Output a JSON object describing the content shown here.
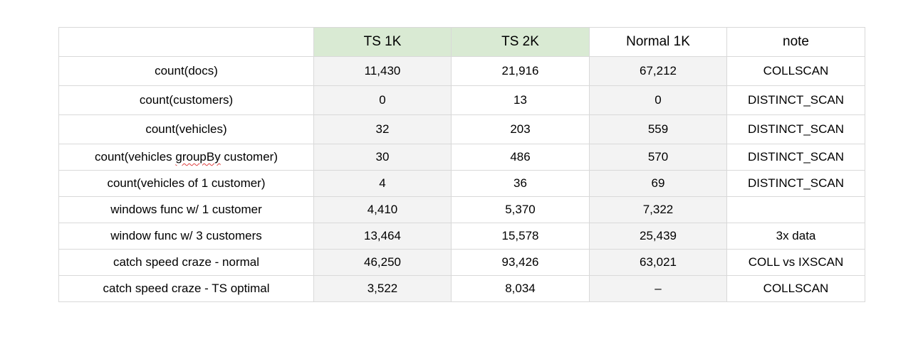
{
  "table": {
    "headers": [
      "",
      "TS 1K",
      "TS 2K",
      "Normal 1K",
      "note"
    ],
    "rows": [
      {
        "label": "count(docs)",
        "ts1k": "11,430",
        "ts2k": "21,916",
        "normal1k": "67,212",
        "note": "COLLSCAN"
      },
      {
        "label": "count(customers)",
        "ts1k": "0",
        "ts2k": "13",
        "normal1k": "0",
        "note": "DISTINCT_SCAN"
      },
      {
        "label": "count(vehicles)",
        "ts1k": "32",
        "ts2k": "203",
        "normal1k": "559",
        "note": "DISTINCT_SCAN"
      },
      {
        "label_parts": [
          "count(vehicles ",
          "groupBy",
          " customer)"
        ],
        "ts1k": "30",
        "ts2k": "486",
        "normal1k": "570",
        "note": "DISTINCT_SCAN"
      },
      {
        "label": "count(vehicles of 1 customer)",
        "ts1k": "4",
        "ts2k": "36",
        "normal1k": "69",
        "note": "DISTINCT_SCAN"
      },
      {
        "label": "windows func w/ 1 customer",
        "ts1k": "4,410",
        "ts2k": "5,370",
        "normal1k": "7,322",
        "note": ""
      },
      {
        "label": "window func w/ 3 customers",
        "ts1k": "13,464",
        "ts2k": "15,578",
        "normal1k": "25,439",
        "note": "3x data"
      },
      {
        "label": "catch speed craze - normal",
        "ts1k": "46,250",
        "ts2k": "93,426",
        "normal1k": "63,021",
        "note": "COLL vs IXSCAN"
      },
      {
        "label": "catch speed craze - TS optimal",
        "ts1k": "3,522",
        "ts2k": "8,034",
        "normal1k": "–",
        "note": "COLLSCAN"
      }
    ]
  },
  "colors": {
    "header_highlight": "#d9ead3",
    "column_shade": "#f3f3f3",
    "grid": "#d9d9d9"
  }
}
